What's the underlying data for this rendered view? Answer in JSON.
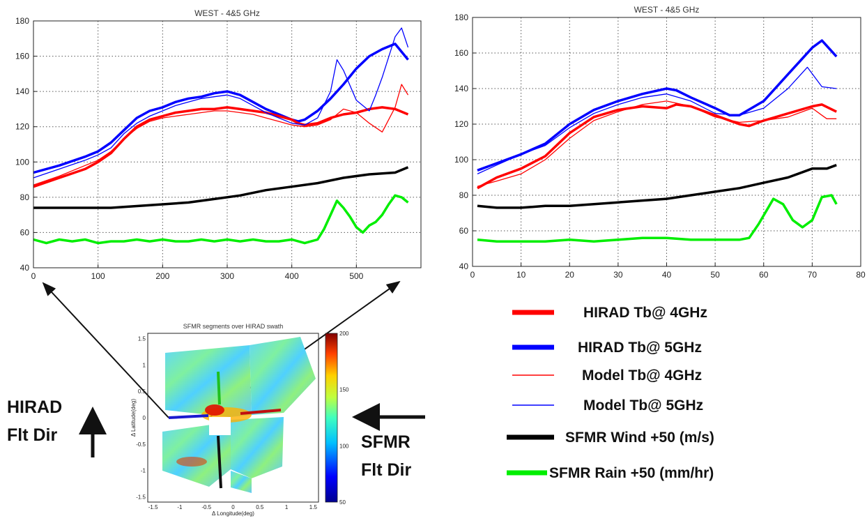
{
  "chart_data": [
    {
      "type": "line",
      "title": "WEST - 4&5 GHz",
      "xlim": [
        0,
        600
      ],
      "ylim": [
        40,
        180
      ],
      "xticks": [
        0,
        100,
        200,
        300,
        400,
        500
      ],
      "yticks": [
        40,
        60,
        80,
        100,
        120,
        140,
        160,
        180
      ],
      "grid": true,
      "series": [
        {
          "color": "#0000ff",
          "width": "thick",
          "x": [
            0,
            40,
            80,
            100,
            120,
            140,
            160,
            180,
            200,
            220,
            240,
            260,
            280,
            300,
            320,
            340,
            360,
            380,
            400,
            410,
            420,
            440,
            460,
            480,
            500,
            520,
            540,
            560,
            580
          ],
          "y": [
            94,
            98,
            103,
            106,
            111,
            118,
            125,
            129,
            131,
            134,
            136,
            137,
            139,
            140,
            138,
            134,
            130,
            127,
            124,
            123,
            124,
            129,
            136,
            144,
            153,
            160,
            164,
            167,
            158
          ]
        },
        {
          "color": "#ff0000",
          "width": "thick",
          "x": [
            0,
            40,
            80,
            100,
            120,
            140,
            160,
            180,
            200,
            220,
            240,
            260,
            280,
            300,
            320,
            340,
            360,
            380,
            400,
            410,
            420,
            440,
            460,
            480,
            500,
            520,
            540,
            560,
            580
          ],
          "y": [
            86,
            91,
            96,
            100,
            105,
            113,
            120,
            124,
            126,
            128,
            129,
            130,
            130,
            131,
            130,
            129,
            128,
            126,
            124,
            122,
            121,
            122,
            125,
            127,
            128,
            130,
            131,
            130,
            127
          ]
        },
        {
          "color": "#0000ff",
          "width": "thin",
          "x": [
            0,
            40,
            80,
            100,
            120,
            140,
            160,
            180,
            200,
            220,
            240,
            260,
            280,
            300,
            320,
            340,
            360,
            380,
            400,
            420,
            440,
            460,
            470,
            480,
            500,
            520,
            530,
            540,
            560,
            570,
            580
          ],
          "y": [
            91,
            96,
            101,
            104,
            108,
            116,
            122,
            126,
            129,
            132,
            134,
            136,
            137,
            138,
            136,
            132,
            128,
            125,
            122,
            121,
            125,
            140,
            158,
            152,
            135,
            129,
            138,
            148,
            171,
            176,
            165
          ]
        },
        {
          "color": "#ff0000",
          "width": "thin",
          "x": [
            0,
            40,
            80,
            100,
            120,
            140,
            160,
            180,
            200,
            220,
            240,
            260,
            280,
            300,
            320,
            340,
            360,
            380,
            400,
            420,
            440,
            460,
            480,
            500,
            520,
            540,
            560,
            570,
            580
          ],
          "y": [
            87,
            92,
            98,
            101,
            106,
            113,
            119,
            123,
            125,
            126,
            127,
            128,
            129,
            129,
            128,
            127,
            125,
            123,
            121,
            120,
            121,
            124,
            130,
            128,
            122,
            117,
            131,
            144,
            138
          ]
        },
        {
          "color": "#000000",
          "width": "thick",
          "x": [
            0,
            40,
            80,
            120,
            160,
            200,
            240,
            280,
            320,
            360,
            400,
            440,
            480,
            520,
            560,
            580
          ],
          "y": [
            74,
            74,
            74,
            74,
            75,
            76,
            77,
            79,
            81,
            84,
            86,
            88,
            91,
            93,
            94,
            97
          ]
        },
        {
          "color": "#00ee00",
          "width": "thick",
          "x": [
            0,
            20,
            40,
            60,
            80,
            100,
            120,
            140,
            160,
            180,
            200,
            220,
            240,
            260,
            280,
            300,
            320,
            340,
            360,
            380,
            400,
            420,
            440,
            450,
            460,
            470,
            480,
            490,
            500,
            510,
            520,
            530,
            540,
            550,
            560,
            570,
            580
          ],
          "y": [
            56,
            54,
            56,
            55,
            56,
            54,
            55,
            55,
            56,
            55,
            56,
            55,
            55,
            56,
            55,
            56,
            55,
            56,
            55,
            55,
            56,
            54,
            56,
            62,
            70,
            78,
            74,
            69,
            63,
            60,
            64,
            66,
            70,
            76,
            81,
            80,
            77
          ]
        }
      ]
    },
    {
      "type": "line",
      "title": "WEST - 4&5 GHz",
      "xlim": [
        0,
        80
      ],
      "ylim": [
        40,
        180
      ],
      "xticks": [
        0,
        10,
        20,
        30,
        40,
        50,
        60,
        70,
        80
      ],
      "yticks": [
        40,
        60,
        80,
        100,
        120,
        140,
        160,
        180
      ],
      "grid": true,
      "series": [
        {
          "color": "#0000ff",
          "width": "thick",
          "x": [
            1,
            5,
            10,
            15,
            20,
            25,
            30,
            35,
            40,
            42,
            45,
            50,
            53,
            55,
            60,
            65,
            70,
            72,
            75
          ],
          "y": [
            94,
            98,
            103,
            109,
            120,
            128,
            133,
            137,
            140,
            139,
            135,
            129,
            125,
            125,
            133,
            148,
            163,
            167,
            158
          ]
        },
        {
          "color": "#ff0000",
          "width": "thick",
          "x": [
            1,
            5,
            10,
            15,
            20,
            25,
            30,
            35,
            40,
            42,
            45,
            50,
            55,
            57,
            60,
            65,
            70,
            72,
            75
          ],
          "y": [
            84,
            90,
            95,
            102,
            115,
            124,
            128,
            130,
            129,
            131,
            130,
            125,
            120,
            119,
            122,
            126,
            130,
            131,
            127
          ]
        },
        {
          "color": "#0000ff",
          "width": "thin",
          "x": [
            1,
            5,
            10,
            15,
            20,
            25,
            30,
            35,
            40,
            45,
            50,
            55,
            60,
            65,
            69,
            72,
            75
          ],
          "y": [
            92,
            97,
            103,
            108,
            118,
            126,
            131,
            135,
            137,
            133,
            126,
            125,
            129,
            140,
            152,
            141,
            140
          ]
        },
        {
          "color": "#ff0000",
          "width": "thin",
          "x": [
            1,
            5,
            10,
            15,
            20,
            25,
            30,
            35,
            40,
            45,
            50,
            55,
            60,
            65,
            70,
            72,
            73,
            75
          ],
          "y": [
            85,
            88,
            92,
            100,
            112,
            122,
            127,
            131,
            133,
            130,
            124,
            121,
            122,
            124,
            129,
            125,
            123,
            123
          ]
        },
        {
          "color": "#000000",
          "width": "thick",
          "x": [
            1,
            5,
            10,
            15,
            20,
            25,
            30,
            35,
            40,
            45,
            50,
            55,
            60,
            65,
            70,
            73,
            75
          ],
          "y": [
            74,
            73,
            73,
            74,
            74,
            75,
            76,
            77,
            78,
            80,
            82,
            84,
            87,
            90,
            95,
            95,
            97
          ]
        },
        {
          "color": "#00ee00",
          "width": "thick",
          "x": [
            1,
            5,
            10,
            15,
            20,
            25,
            30,
            35,
            40,
            45,
            50,
            55,
            57,
            59,
            62,
            64,
            66,
            68,
            70,
            72,
            74,
            75
          ],
          "y": [
            55,
            54,
            54,
            54,
            55,
            54,
            55,
            56,
            56,
            55,
            55,
            55,
            56,
            64,
            78,
            75,
            66,
            62,
            66,
            79,
            80,
            75
          ]
        }
      ]
    },
    {
      "type": "heatmap",
      "title": "SFMR segments over HIRAD swath",
      "xlabel": "Δ Longitude(deg)",
      "ylabel": "Δ Latitude(deg)",
      "xlim": [
        -1.6,
        1.6
      ],
      "ylim": [
        -1.6,
        1.6
      ],
      "xticks": [
        "-1.5",
        "-1",
        "-0.5",
        "0",
        "0.5",
        "1",
        "1.5"
      ],
      "yticks": [
        "1.5",
        "1",
        "0.5",
        "0",
        "-0.5",
        "-1",
        "-1.5"
      ],
      "colorbar_ticks": [
        "200",
        "150",
        "100",
        "50"
      ],
      "colorbar_range": [
        50,
        200
      ]
    }
  ],
  "legend": [
    {
      "label": "HIRAD Tb@ 4GHz",
      "color": "#ff0000",
      "width": "thick"
    },
    {
      "label": "HIRAD Tb@ 5GHz",
      "color": "#0000ff",
      "width": "thick"
    },
    {
      "label": "Model Tb@ 4GHz",
      "color": "#ff0000",
      "width": "thin"
    },
    {
      "label": "Model Tb@ 5GHz",
      "color": "#0000ff",
      "width": "thin"
    },
    {
      "label": "SFMR Wind +50 (m/s)",
      "color": "#000000",
      "width": "thick"
    },
    {
      "label": "SFMR Rain +50 (mm/hr)",
      "color": "#00ee00",
      "width": "thick"
    }
  ],
  "annotations": {
    "hirad_dir": [
      "HIRAD",
      "Flt Dir"
    ],
    "sfmr_dir": [
      "SFMR",
      "Flt Dir"
    ]
  }
}
